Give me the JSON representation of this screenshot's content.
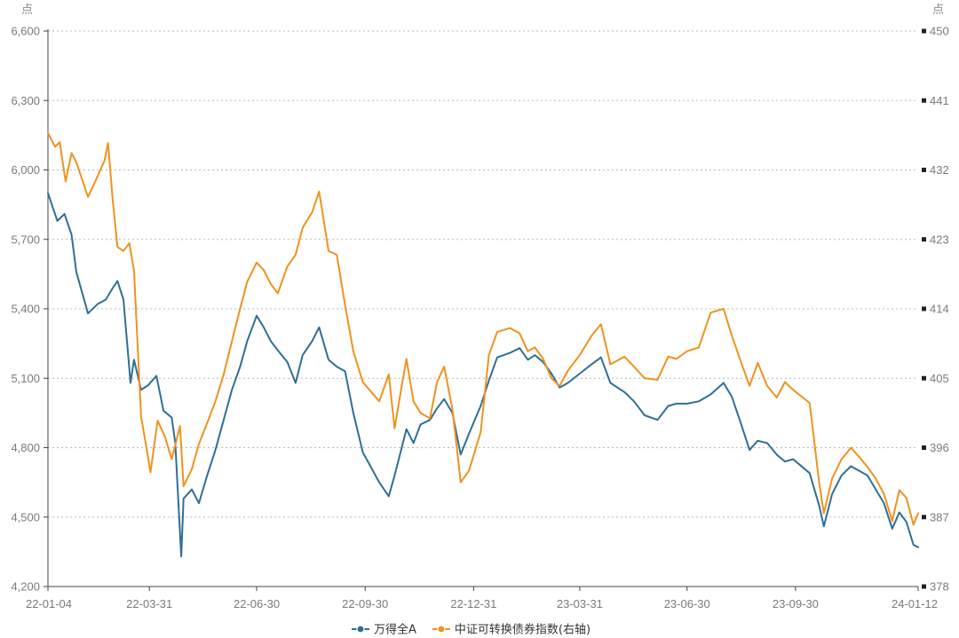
{
  "chart_data": {
    "type": "line",
    "title": "",
    "y_left": {
      "unit": "点",
      "min": 4200,
      "max": 6600,
      "ticks": [
        "4,200",
        "4,500",
        "4,800",
        "5,100",
        "5,400",
        "5,700",
        "6,000",
        "6,300",
        "6,600"
      ]
    },
    "y_right": {
      "unit": "点",
      "min": 378,
      "max": 450,
      "ticks": [
        "378",
        "387",
        "396",
        "405",
        "414",
        "423",
        "432",
        "441",
        "450"
      ]
    },
    "x_axis": {
      "start": "2022-01-04",
      "end": "2024-01-12",
      "ticks": [
        {
          "date": "2022-01-04",
          "label": "22-01-04"
        },
        {
          "date": "2022-03-31",
          "label": "22-03-31"
        },
        {
          "date": "2022-06-30",
          "label": "22-06-30"
        },
        {
          "date": "2022-09-30",
          "label": "22-09-30"
        },
        {
          "date": "2022-12-31",
          "label": "22-12-31"
        },
        {
          "date": "2023-03-31",
          "label": "23-03-31"
        },
        {
          "date": "2023-06-30",
          "label": "23-06-30"
        },
        {
          "date": "2023-09-30",
          "label": "23-09-30"
        },
        {
          "date": "2024-01-12",
          "label": "24-01-12"
        }
      ]
    },
    "grid": true,
    "legend_position": "bottom-center",
    "series": [
      {
        "name": "万得全A",
        "axis": "left",
        "color": "#2f6f95",
        "points": [
          [
            "2022-01-04",
            5900
          ],
          [
            "2022-01-12",
            5780
          ],
          [
            "2022-01-18",
            5810
          ],
          [
            "2022-01-24",
            5720
          ],
          [
            "2022-01-28",
            5560
          ],
          [
            "2022-02-07",
            5380
          ],
          [
            "2022-02-15",
            5420
          ],
          [
            "2022-02-22",
            5440
          ],
          [
            "2022-02-28",
            5490
          ],
          [
            "2022-03-04",
            5520
          ],
          [
            "2022-03-09",
            5440
          ],
          [
            "2022-03-15",
            5080
          ],
          [
            "2022-03-18",
            5180
          ],
          [
            "2022-03-24",
            5050
          ],
          [
            "2022-03-30",
            5070
          ],
          [
            "2022-04-06",
            5110
          ],
          [
            "2022-04-12",
            4960
          ],
          [
            "2022-04-19",
            4930
          ],
          [
            "2022-04-22",
            4820
          ],
          [
            "2022-04-27",
            4330
          ],
          [
            "2022-04-29",
            4580
          ],
          [
            "2022-05-06",
            4620
          ],
          [
            "2022-05-12",
            4560
          ],
          [
            "2022-05-19",
            4680
          ],
          [
            "2022-05-26",
            4790
          ],
          [
            "2022-06-02",
            4920
          ],
          [
            "2022-06-09",
            5050
          ],
          [
            "2022-06-16",
            5150
          ],
          [
            "2022-06-22",
            5260
          ],
          [
            "2022-06-30",
            5370
          ],
          [
            "2022-07-06",
            5320
          ],
          [
            "2022-07-12",
            5260
          ],
          [
            "2022-07-18",
            5220
          ],
          [
            "2022-07-26",
            5170
          ],
          [
            "2022-08-02",
            5080
          ],
          [
            "2022-08-08",
            5200
          ],
          [
            "2022-08-16",
            5260
          ],
          [
            "2022-08-22",
            5320
          ],
          [
            "2022-08-30",
            5180
          ],
          [
            "2022-09-06",
            5150
          ],
          [
            "2022-09-13",
            5130
          ],
          [
            "2022-09-20",
            4950
          ],
          [
            "2022-09-28",
            4780
          ],
          [
            "2022-10-12",
            4650
          ],
          [
            "2022-10-20",
            4590
          ],
          [
            "2022-10-25",
            4680
          ],
          [
            "2022-10-31",
            4800
          ],
          [
            "2022-11-04",
            4880
          ],
          [
            "2022-11-10",
            4820
          ],
          [
            "2022-11-16",
            4900
          ],
          [
            "2022-11-24",
            4920
          ],
          [
            "2022-11-30",
            4970
          ],
          [
            "2022-12-06",
            5010
          ],
          [
            "2022-12-13",
            4950
          ],
          [
            "2022-12-20",
            4770
          ],
          [
            "2022-12-27",
            4860
          ],
          [
            "2023-01-06",
            4980
          ],
          [
            "2023-01-13",
            5090
          ],
          [
            "2023-01-20",
            5190
          ],
          [
            "2023-01-31",
            5210
          ],
          [
            "2023-02-08",
            5230
          ],
          [
            "2023-02-15",
            5180
          ],
          [
            "2023-02-21",
            5200
          ],
          [
            "2023-02-28",
            5170
          ],
          [
            "2023-03-07",
            5120
          ],
          [
            "2023-03-14",
            5060
          ],
          [
            "2023-03-21",
            5080
          ],
          [
            "2023-03-31",
            5120
          ],
          [
            "2023-04-10",
            5160
          ],
          [
            "2023-04-18",
            5190
          ],
          [
            "2023-04-26",
            5080
          ],
          [
            "2023-05-08",
            5040
          ],
          [
            "2023-05-16",
            5000
          ],
          [
            "2023-05-25",
            4940
          ],
          [
            "2023-06-05",
            4920
          ],
          [
            "2023-06-14",
            4980
          ],
          [
            "2023-06-21",
            4990
          ],
          [
            "2023-06-30",
            4990
          ],
          [
            "2023-07-10",
            5000
          ],
          [
            "2023-07-20",
            5030
          ],
          [
            "2023-07-31",
            5080
          ],
          [
            "2023-08-07",
            5020
          ],
          [
            "2023-08-15",
            4900
          ],
          [
            "2023-08-22",
            4790
          ],
          [
            "2023-08-29",
            4830
          ],
          [
            "2023-09-06",
            4820
          ],
          [
            "2023-09-14",
            4770
          ],
          [
            "2023-09-21",
            4740
          ],
          [
            "2023-09-28",
            4750
          ],
          [
            "2023-10-12",
            4690
          ],
          [
            "2023-10-20",
            4550
          ],
          [
            "2023-10-24",
            4460
          ],
          [
            "2023-10-31",
            4600
          ],
          [
            "2023-11-08",
            4680
          ],
          [
            "2023-11-16",
            4720
          ],
          [
            "2023-11-23",
            4700
          ],
          [
            "2023-11-30",
            4680
          ],
          [
            "2023-12-07",
            4620
          ],
          [
            "2023-12-14",
            4560
          ],
          [
            "2023-12-21",
            4450
          ],
          [
            "2023-12-27",
            4520
          ],
          [
            "2024-01-02",
            4480
          ],
          [
            "2024-01-08",
            4380
          ],
          [
            "2024-01-12",
            4370
          ]
        ]
      },
      {
        "name": "中证可转换债券指数(右轴)",
        "axis": "right",
        "color": "#f0921e",
        "points": [
          [
            "2022-01-04",
            436.8
          ],
          [
            "2022-01-10",
            435.0
          ],
          [
            "2022-01-14",
            435.6
          ],
          [
            "2022-01-19",
            430.5
          ],
          [
            "2022-01-24",
            434.2
          ],
          [
            "2022-01-28",
            433.0
          ],
          [
            "2022-02-07",
            428.5
          ],
          [
            "2022-02-14",
            430.8
          ],
          [
            "2022-02-21",
            433.2
          ],
          [
            "2022-02-24",
            435.5
          ],
          [
            "2022-02-28",
            428.0
          ],
          [
            "2022-03-04",
            422.0
          ],
          [
            "2022-03-09",
            421.5
          ],
          [
            "2022-03-14",
            422.5
          ],
          [
            "2022-03-18",
            419.0
          ],
          [
            "2022-03-24",
            400.0
          ],
          [
            "2022-03-28",
            396.5
          ],
          [
            "2022-04-01",
            392.8
          ],
          [
            "2022-04-07",
            399.5
          ],
          [
            "2022-04-13",
            397.5
          ],
          [
            "2022-04-19",
            394.5
          ],
          [
            "2022-04-26",
            398.8
          ],
          [
            "2022-04-29",
            391.0
          ],
          [
            "2022-05-06",
            393.2
          ],
          [
            "2022-05-12",
            396.5
          ],
          [
            "2022-05-19",
            399.2
          ],
          [
            "2022-05-26",
            402.0
          ],
          [
            "2022-06-02",
            405.5
          ],
          [
            "2022-06-09",
            409.8
          ],
          [
            "2022-06-16",
            414.0
          ],
          [
            "2022-06-22",
            417.5
          ],
          [
            "2022-06-30",
            420.0
          ],
          [
            "2022-07-06",
            419.0
          ],
          [
            "2022-07-12",
            417.2
          ],
          [
            "2022-07-18",
            416.0
          ],
          [
            "2022-07-26",
            419.5
          ],
          [
            "2022-08-02",
            421.0
          ],
          [
            "2022-08-08",
            424.5
          ],
          [
            "2022-08-16",
            426.5
          ],
          [
            "2022-08-22",
            429.2
          ],
          [
            "2022-08-30",
            421.5
          ],
          [
            "2022-09-06",
            421.0
          ],
          [
            "2022-09-13",
            414.5
          ],
          [
            "2022-09-20",
            408.5
          ],
          [
            "2022-09-28",
            404.5
          ],
          [
            "2022-10-12",
            402.0
          ],
          [
            "2022-10-20",
            405.5
          ],
          [
            "2022-10-25",
            398.5
          ],
          [
            "2022-10-31",
            404.0
          ],
          [
            "2022-11-04",
            407.5
          ],
          [
            "2022-11-10",
            402.0
          ],
          [
            "2022-11-16",
            400.5
          ],
          [
            "2022-11-24",
            399.8
          ],
          [
            "2022-11-30",
            404.5
          ],
          [
            "2022-12-06",
            406.5
          ],
          [
            "2022-12-13",
            401.0
          ],
          [
            "2022-12-20",
            391.5
          ],
          [
            "2022-12-27",
            393.0
          ],
          [
            "2023-01-06",
            398.0
          ],
          [
            "2023-01-13",
            408.0
          ],
          [
            "2023-01-20",
            411.0
          ],
          [
            "2023-01-31",
            411.5
          ],
          [
            "2023-02-08",
            410.8
          ],
          [
            "2023-02-15",
            408.5
          ],
          [
            "2023-02-21",
            409.0
          ],
          [
            "2023-02-28",
            407.5
          ],
          [
            "2023-03-07",
            405.0
          ],
          [
            "2023-03-14",
            404.0
          ],
          [
            "2023-03-21",
            406.0
          ],
          [
            "2023-03-31",
            408.0
          ],
          [
            "2023-04-10",
            410.5
          ],
          [
            "2023-04-18",
            412.0
          ],
          [
            "2023-04-26",
            406.8
          ],
          [
            "2023-05-08",
            407.8
          ],
          [
            "2023-05-16",
            406.5
          ],
          [
            "2023-05-25",
            405.0
          ],
          [
            "2023-06-05",
            404.8
          ],
          [
            "2023-06-14",
            407.8
          ],
          [
            "2023-06-21",
            407.5
          ],
          [
            "2023-06-30",
            408.5
          ],
          [
            "2023-07-10",
            409.0
          ],
          [
            "2023-07-20",
            413.5
          ],
          [
            "2023-07-31",
            414.0
          ],
          [
            "2023-08-07",
            410.5
          ],
          [
            "2023-08-15",
            407.0
          ],
          [
            "2023-08-22",
            404.0
          ],
          [
            "2023-08-29",
            407.0
          ],
          [
            "2023-09-06",
            404.0
          ],
          [
            "2023-09-14",
            402.5
          ],
          [
            "2023-09-21",
            404.5
          ],
          [
            "2023-09-28",
            403.5
          ],
          [
            "2023-10-12",
            401.8
          ],
          [
            "2023-10-20",
            391.5
          ],
          [
            "2023-10-24",
            387.5
          ],
          [
            "2023-10-31",
            392.0
          ],
          [
            "2023-11-08",
            394.5
          ],
          [
            "2023-11-16",
            396.0
          ],
          [
            "2023-11-23",
            394.8
          ],
          [
            "2023-11-30",
            393.5
          ],
          [
            "2023-12-07",
            392.0
          ],
          [
            "2023-12-14",
            390.0
          ],
          [
            "2023-12-21",
            386.5
          ],
          [
            "2023-12-27",
            390.5
          ],
          [
            "2024-01-02",
            389.5
          ],
          [
            "2024-01-08",
            386.0
          ],
          [
            "2024-01-12",
            387.5
          ]
        ]
      }
    ]
  }
}
